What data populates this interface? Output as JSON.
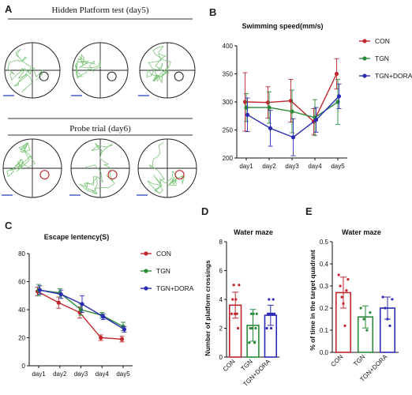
{
  "panels": {
    "a": {
      "label": "A",
      "title_top": "Hidden Platform test (day5)",
      "title_bottom": "Probe trial (day6)"
    },
    "b": {
      "label": "B"
    },
    "c": {
      "label": "C"
    },
    "d": {
      "label": "D"
    },
    "e": {
      "label": "E"
    }
  },
  "colors": {
    "CON": "#c0262d",
    "TGN": "#2a8a3a",
    "TGN+DORA": "#2b2bb5",
    "track": "#7cc47a"
  },
  "chart_data": [
    {
      "id": "b",
      "type": "line",
      "title": "Swimming speed(mm/s)",
      "xlabel": "",
      "ylabel": "",
      "categories": [
        "day1",
        "day2",
        "day3",
        "day4",
        "day5"
      ],
      "ylim": [
        200,
        400
      ],
      "yticks": [
        200,
        250,
        300,
        350,
        400
      ],
      "legend_position": "right",
      "series": [
        {
          "name": "CON",
          "values": [
            300,
            299,
            302,
            265,
            350
          ],
          "err": [
            52,
            28,
            38,
            23,
            27
          ]
        },
        {
          "name": "TGN",
          "values": [
            290,
            290,
            283,
            272,
            300
          ],
          "err": [
            25,
            28,
            38,
            32,
            40
          ]
        },
        {
          "name": "TGN+DORA",
          "values": [
            277,
            253,
            237,
            268,
            310
          ],
          "err": [
            30,
            32,
            33,
            22,
            22
          ]
        }
      ]
    },
    {
      "id": "c",
      "type": "line",
      "title": "Escape lentency(S)",
      "xlabel": "",
      "ylabel": "",
      "categories": [
        "day1",
        "day2",
        "day3",
        "day4",
        "day5"
      ],
      "ylim": [
        0,
        80
      ],
      "yticks": [
        0,
        20,
        40,
        60,
        80
      ],
      "legend_position": "right",
      "series": [
        {
          "name": "CON",
          "values": [
            53,
            45,
            38,
            20,
            19
          ],
          "err": [
            3,
            4,
            4,
            2,
            2
          ]
        },
        {
          "name": "TGN",
          "values": [
            54,
            52,
            40,
            36,
            28
          ],
          "err": [
            4,
            3,
            4,
            2,
            3
          ]
        },
        {
          "name": "TGN+DORA",
          "values": [
            54,
            51,
            44,
            35,
            26
          ],
          "err": [
            3,
            3,
            6,
            2,
            2
          ]
        }
      ]
    },
    {
      "id": "d",
      "type": "bar",
      "title": "Water maze",
      "xlabel": "",
      "ylabel": "Number of platform crossings",
      "categories": [
        "CON",
        "TGN",
        "TGN+DORA"
      ],
      "ylim": [
        0,
        8
      ],
      "yticks": [
        0,
        2,
        4,
        6,
        8
      ],
      "values": [
        3.6,
        2.2,
        2.9
      ],
      "err": [
        0.9,
        1.1,
        0.7
      ],
      "points": [
        [
          3,
          4,
          5,
          3,
          4,
          3,
          2,
          5
        ],
        [
          1,
          2,
          3,
          2,
          3,
          1,
          2,
          3
        ],
        [
          2,
          3,
          4,
          3,
          2,
          3,
          4,
          3
        ]
      ]
    },
    {
      "id": "e",
      "type": "bar",
      "title": "Water maze",
      "xlabel": "",
      "ylabel": "% of time in the target quadrant",
      "categories": [
        "CON",
        "TGN",
        "TGN+DORA"
      ],
      "ylim": [
        0,
        0.5
      ],
      "yticks": [
        0,
        0.1,
        0.2,
        0.3,
        0.4,
        0.5
      ],
      "values": [
        0.27,
        0.16,
        0.2
      ],
      "err": [
        0.07,
        0.05,
        0.05
      ],
      "points": [
        [
          0.35,
          0.3,
          0.25,
          0.22,
          0.12,
          0.28,
          0.33
        ],
        [
          0.2,
          0.15,
          0.1,
          0.18
        ],
        [
          0.25,
          0.2,
          0.15,
          0.12,
          0.24
        ]
      ]
    }
  ]
}
